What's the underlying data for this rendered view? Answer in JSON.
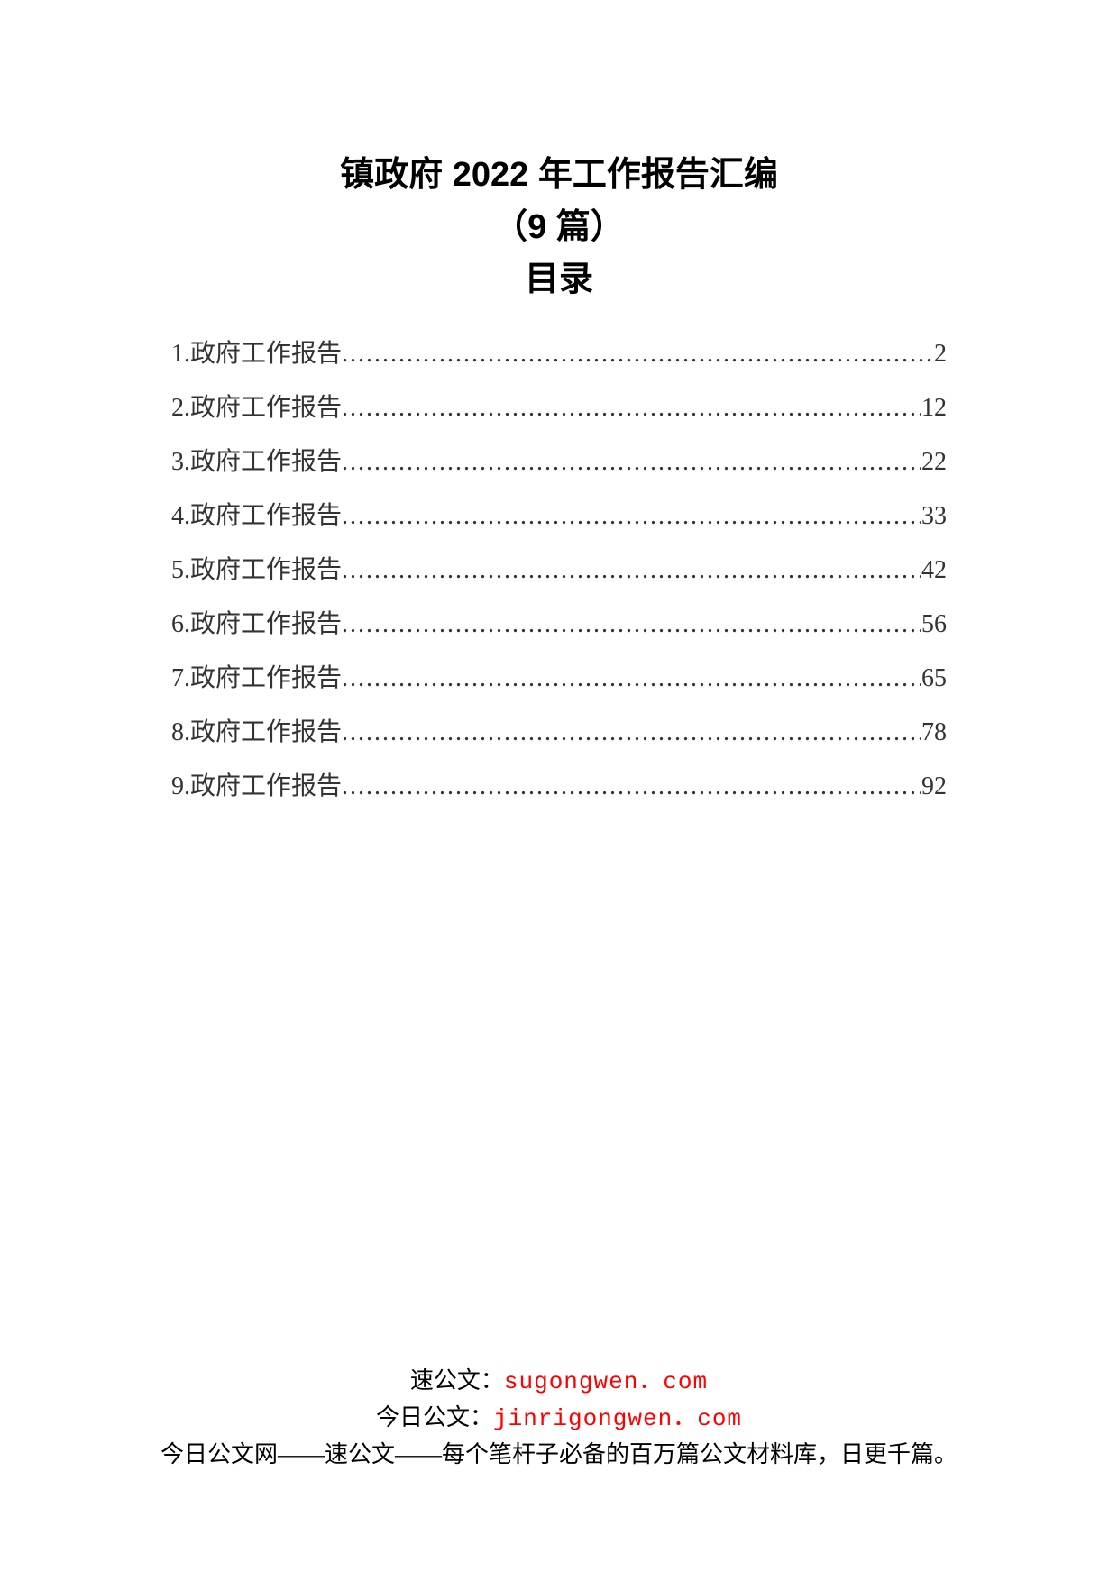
{
  "title": {
    "line1": "镇政府 2022 年工作报告汇编",
    "line2": "（9 篇）",
    "line3": "目录"
  },
  "toc": {
    "entries": [
      {
        "label": "1.政府工作报告",
        "page": "2"
      },
      {
        "label": "2.政府工作报告",
        "page": "12"
      },
      {
        "label": "3.政府工作报告",
        "page": "22"
      },
      {
        "label": "4.政府工作报告",
        "page": "33"
      },
      {
        "label": "5.政府工作报告",
        "page": "42"
      },
      {
        "label": "6.政府工作报告",
        "page": "56"
      },
      {
        "label": "7.政府工作报告",
        "page": "65"
      },
      {
        "label": "8.政府工作报告",
        "page": "78"
      },
      {
        "label": "9.政府工作报告",
        "page": "92"
      }
    ],
    "leader_char": "."
  },
  "footer": {
    "line1_prefix": "速公文：",
    "line1_link": "sugongwen．com",
    "line2_prefix": "今日公文：",
    "line2_link": "jinrigongwen．com",
    "line3": "今日公文网——速公文——每个笔杆子必备的百万篇公文材料库，日更千篇。"
  },
  "colors": {
    "background": "#ffffff",
    "text": "#000000",
    "toc_text": "#333333",
    "link": "#ff0000"
  }
}
